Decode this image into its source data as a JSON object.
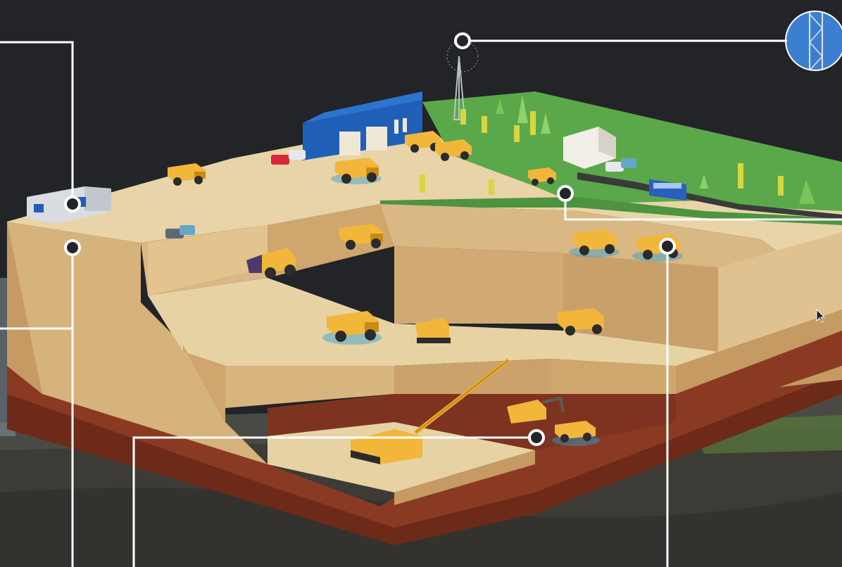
{
  "scene": {
    "kind": "isometric open-pit mine cross-section infographic",
    "colors": {
      "background": "#222427",
      "sand_light": "#e8cfa2",
      "sand_mid": "#d6b27c",
      "sand_dark": "#c59a63",
      "clay": "#8a3a22",
      "clay_dark": "#6e2a18",
      "grass": "#5aa84a",
      "building_blue": "#1f5fb8",
      "truck_yellow": "#f2b63a",
      "callout": "#ffffff",
      "wifi_halo": "#2a9fd8"
    },
    "icons": [
      "radio-tower-icon",
      "dump-truck-icon",
      "excavator-icon",
      "bulldozer-icon",
      "wheel-loader-icon",
      "dragline-crane-icon",
      "bus-icon",
      "car-icon",
      "office-cabin-icon",
      "garage-building-icon",
      "mouse-cursor-icon"
    ],
    "callouts": [
      "office-cabin-callout",
      "cabin-lower-callout",
      "radio-tower-callout",
      "control-building-callout",
      "upper-bench-trucks-callout",
      "pit-floor-callout"
    ]
  }
}
